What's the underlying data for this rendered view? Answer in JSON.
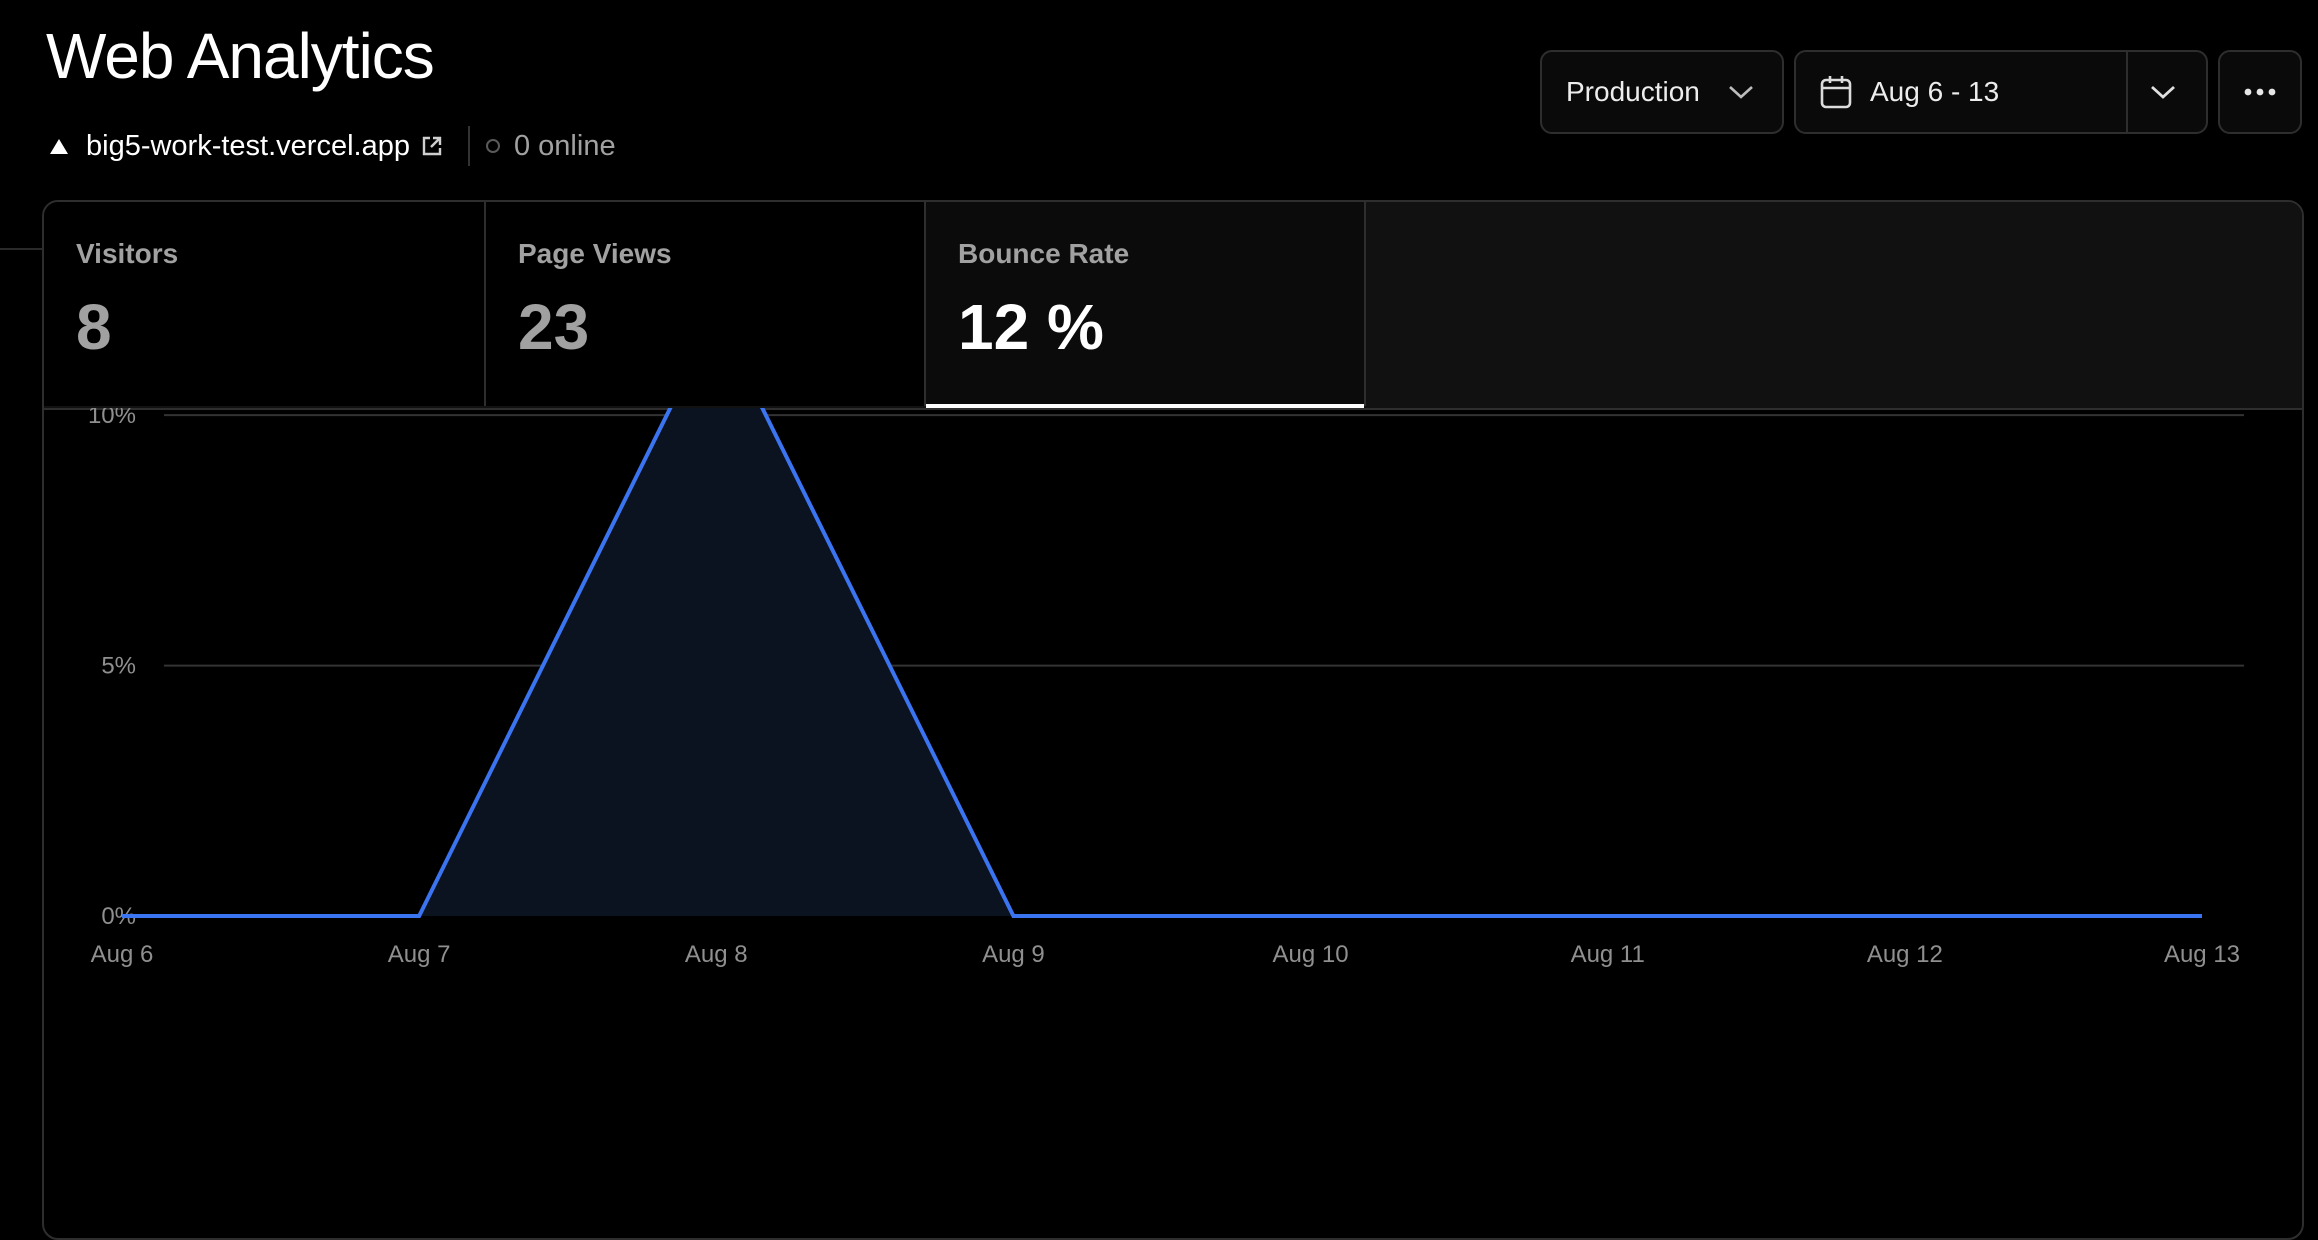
{
  "page": {
    "title": "Web Analytics"
  },
  "project": {
    "domain": "big5-work-test.vercel.app",
    "online": "0 online"
  },
  "controls": {
    "environment": "Production",
    "date_range": "Aug 6 - 13"
  },
  "metrics": [
    {
      "label": "Visitors",
      "value": "8"
    },
    {
      "label": "Page Views",
      "value": "23"
    },
    {
      "label": "Bounce Rate",
      "value": "12 %",
      "active": true
    }
  ],
  "colors": {
    "accent": "#3b74f0",
    "background": "#000000",
    "border": "#2e2e2e"
  },
  "chart_data": {
    "type": "area",
    "x": [
      "Aug 6",
      "Aug 7",
      "Aug 8",
      "Aug 9",
      "Aug 10",
      "Aug 11",
      "Aug 12",
      "Aug 13"
    ],
    "series": [
      {
        "values": [
          0,
          0,
          12,
          0,
          0,
          0,
          0,
          0
        ]
      }
    ],
    "y_ticks": [
      "0%",
      "5%",
      "10%"
    ],
    "y_tick_values": [
      0,
      5,
      10
    ],
    "ylim": [
      0,
      12
    ],
    "grid": true
  }
}
